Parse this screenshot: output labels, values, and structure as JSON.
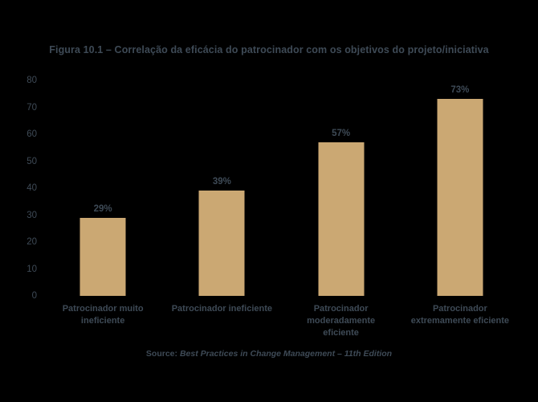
{
  "title": "Figura 10.1 – Correlação da eficácia do patrocinador com os objetivos do projeto/iniciativa",
  "source": {
    "prefix": "Source:",
    "citation": "Best Practices in Change Management – 11th Edition"
  },
  "colors": {
    "background": "#000000",
    "bar": "#cba873",
    "text": "#3e4a56"
  },
  "chart_data": {
    "type": "bar",
    "categories": [
      "Patrocinador muito ineficiente",
      "Patrocinador ineficiente",
      "Patrocinador moderadamente eficiente",
      "Patrocinador extremamente eficiente"
    ],
    "values": [
      29,
      39,
      57,
      73
    ],
    "value_labels": [
      "29%",
      "39%",
      "57%",
      "73%"
    ],
    "title": "Figura 10.1 – Correlação da eficácia do patrocinador com os objetivos do projeto/iniciativa",
    "xlabel": "",
    "ylabel": "",
    "ylim": [
      0,
      80
    ],
    "yticks": [
      0,
      10,
      20,
      30,
      40,
      50,
      60,
      70,
      80
    ],
    "grid": false,
    "legend_position": "none",
    "bar_color": "#cba873"
  }
}
